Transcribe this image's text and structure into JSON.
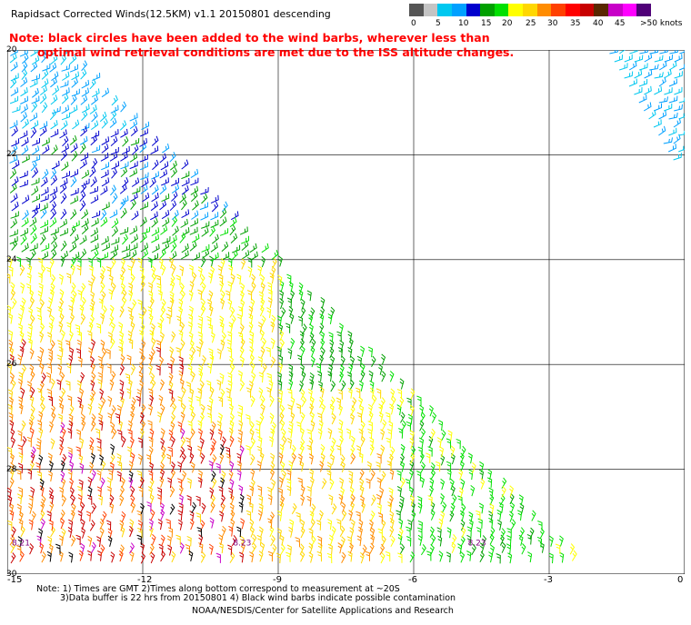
{
  "title": "Rapidsact Corrected Winds(12.5KM) v1.1 20150801 descending",
  "note": {
    "line1": "Note: black circles have been added to the wind barbs, wherever less than",
    "line2": "optimal wind retrieval conditions are met due to the ISS altitude changes."
  },
  "legend": {
    "colors": [
      "#555555",
      "#c4c4c4",
      "#00c8f0",
      "#00a0ff",
      "#0000cd",
      "#00a000",
      "#00e000",
      "#ffff00",
      "#ffd700",
      "#ff8c00",
      "#ff4000",
      "#ff0000",
      "#c80000",
      "#5a2800",
      "#c800c8",
      "#ff00ff",
      "#500078"
    ],
    "labels": [
      "0",
      "5",
      "10",
      "15",
      "20",
      "25",
      "30",
      "35",
      "40",
      "45",
      ">50 knots"
    ],
    "unit": "knots"
  },
  "axes": {
    "y_ticks": [
      "20",
      "22",
      "24",
      "26",
      "28",
      "30"
    ],
    "x_ticks": [
      "-15",
      "-12",
      "-9",
      "-6",
      "-3",
      "0"
    ],
    "y_range": [
      20,
      30
    ],
    "x_range": [
      -15,
      0
    ]
  },
  "time_labels": [
    "8.21",
    "8.23",
    "8.23"
  ],
  "footer": {
    "line1": "Note: 1) Times are GMT 2)Times along bottom correspond to measurement at ~20S",
    "line2": "3)Data buffer is 22 hrs from 20150801 4) Black wind barbs indicate possible contamination",
    "credit": "NOAA/NESDIS/Center for Satellite Applications and Research"
  }
}
